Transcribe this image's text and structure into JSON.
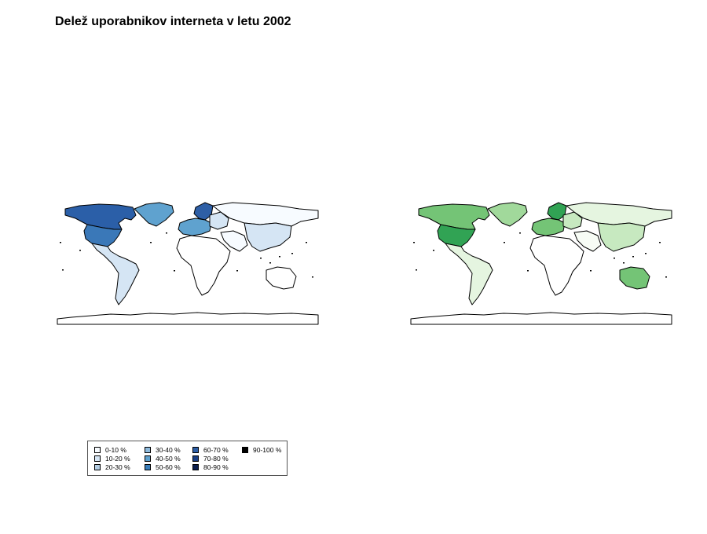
{
  "title": "Delež uporabnikov interneta v letu 2002",
  "legend": {
    "items": [
      {
        "label": "0-10 %",
        "color": "#f7fbff"
      },
      {
        "label": "10-20 %",
        "color": "#d5e5f4"
      },
      {
        "label": "20-30 %",
        "color": "#b3cde3"
      },
      {
        "label": "30-40 %",
        "color": "#8fbbdd"
      },
      {
        "label": "40-50 %",
        "color": "#5fa2cf"
      },
      {
        "label": "50-60 %",
        "color": "#3c80bc"
      },
      {
        "label": "60-70 %",
        "color": "#2e5fa6"
      },
      {
        "label": "70-80 %",
        "color": "#1a3f85"
      },
      {
        "label": "80-90 %",
        "color": "#0b1e4d"
      },
      {
        "label": "90-100 %",
        "color": "#000000"
      }
    ]
  },
  "maps": {
    "blue": {
      "colors": {
        "north_america": "#2b5fa8",
        "usa": "#3a78b8",
        "greenland": "#5fa2cf",
        "latin_america": "#d5e5f4",
        "europe_nordic": "#2e5fa6",
        "europe_west": "#5fa2cf",
        "europe_east": "#d5e5f4",
        "russia_asia": "#f7fbff",
        "east_asia": "#d5e5f4",
        "africa": "#ffffff",
        "middle_east": "#f7fbff",
        "australia": "#ffffff",
        "antarctica": "#ffffff"
      }
    },
    "green": {
      "colors": {
        "north_america": "#74c476",
        "usa": "#31a354",
        "greenland": "#a1d99b",
        "latin_america": "#e5f5e0",
        "europe_nordic": "#31a354",
        "europe_west": "#74c476",
        "europe_east": "#c7e9c0",
        "russia_asia": "#e5f5e0",
        "east_asia": "#c7e9c0",
        "africa": "#ffffff",
        "middle_east": "#f7fcf5",
        "australia": "#74c476",
        "antarctica": "#ffffff"
      }
    }
  }
}
